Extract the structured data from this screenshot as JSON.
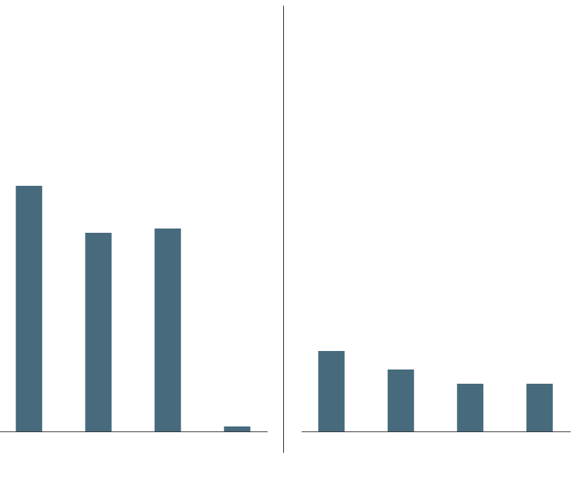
{
  "chart_data": [
    {
      "type": "bar",
      "categories": [
        null,
        null,
        null,
        null
      ],
      "values": [
        345,
        279,
        285,
        7
      ],
      "color": "#476a7d",
      "ylim": [
        0,
        600
      ]
    },
    {
      "type": "bar",
      "categories": [
        null,
        null,
        null,
        null
      ],
      "values": [
        113,
        87,
        67,
        67
      ],
      "color": "#476a7d",
      "ylim": [
        0,
        600
      ]
    }
  ]
}
